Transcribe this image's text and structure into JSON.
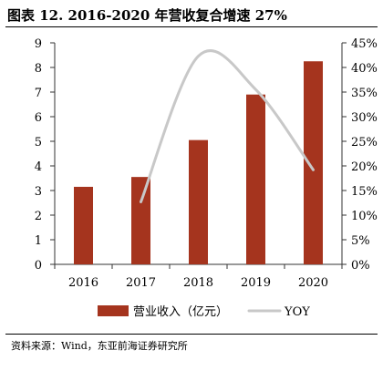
{
  "title": "图表 12. 2016-2020 年营收复合增速 27%",
  "source": "资料来源：Wind，东亚前海证券研究所",
  "colors": {
    "bar": "#a5341e",
    "line": "#c8c8c8",
    "axis": "#333333"
  },
  "chart_data": {
    "type": "bar",
    "categories": [
      "2016",
      "2017",
      "2018",
      "2019",
      "2020"
    ],
    "series": [
      {
        "name": "营业收入（亿元）",
        "type": "bar",
        "axis": "left",
        "values": [
          3.15,
          3.55,
          5.05,
          6.9,
          8.25
        ]
      },
      {
        "name": "YOY",
        "type": "line",
        "axis": "right",
        "values": [
          null,
          12.7,
          42.3,
          35.5,
          19.2
        ]
      }
    ],
    "y_left": {
      "min": 0,
      "max": 9,
      "ticks": [
        "0",
        "1",
        "2",
        "3",
        "4",
        "5",
        "6",
        "7",
        "8",
        "9"
      ]
    },
    "y_right": {
      "min": 0,
      "max": 45,
      "ticks": [
        "0%",
        "5%",
        "10%",
        "15%",
        "20%",
        "25%",
        "30%",
        "35%",
        "40%",
        "45%"
      ]
    },
    "grid": false,
    "legend_position": "bottom"
  }
}
